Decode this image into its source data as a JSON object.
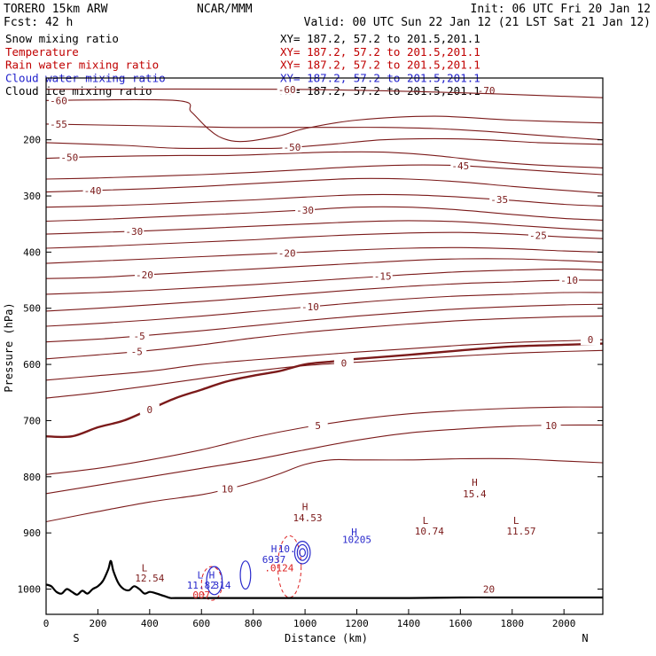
{
  "header": {
    "model": "TORERO  15km ARW",
    "org": "NCAR/MMM",
    "init": "Init: 06 UTC Fri 20 Jan 12",
    "fcst": "Fcst:   42 h",
    "valid": "Valid: 00 UTC Sun 22 Jan 12 (21 LST Sat 21 Jan 12)"
  },
  "legend": [
    {
      "name": "Snow mixing ratio",
      "xy": "XY= 187.2, 57.2 to 201.5,201.1",
      "name_color": "#000000",
      "xy_color": "#000000"
    },
    {
      "name": "Temperature",
      "xy": "XY= 187.2, 57.2 to 201.5,201.1",
      "name_color": "#c00000",
      "xy_color": "#c00000"
    },
    {
      "name": "Rain water mixing ratio",
      "xy": "XY= 187.2, 57.2 to 201.5,201.1",
      "name_color": "#c00000",
      "xy_color": "#c00000"
    },
    {
      "name": "Cloud water mixing ratio",
      "xy": "XY= 187.2, 57.2 to 201.5,201.1",
      "name_color": "#2222cc",
      "xy_color": "#2222cc"
    },
    {
      "name": "Cloud ice mixing ratio",
      "xy": "XY= 187.2, 57.2 to 201.5,201.1",
      "name_color": "#000000",
      "xy_color": "#000000"
    }
  ],
  "colors": {
    "temperature": "#7b1a1a",
    "cloud_water": "#2a2acc",
    "rain": "#dd2222",
    "terrain": "#000000",
    "frame": "#000000"
  },
  "chart_data": {
    "type": "cross-section contour",
    "xlabel": "Distance (km)",
    "ylabel": "Pressure (hPa)",
    "xlim": [
      0,
      2150
    ],
    "ylim": [
      1045,
      90
    ],
    "x_ticks": [
      0,
      200,
      400,
      600,
      800,
      1000,
      1200,
      1400,
      1600,
      1800,
      2000
    ],
    "y_ticks": [
      200,
      300,
      400,
      500,
      600,
      700,
      800,
      900,
      1000
    ],
    "x_end_labels": {
      "left": "S",
      "right": "N"
    },
    "terrain": {
      "x": [
        0,
        20,
        40,
        60,
        80,
        100,
        120,
        140,
        160,
        180,
        200,
        220,
        240,
        250,
        260,
        280,
        300,
        320,
        340,
        360,
        380,
        400,
        420,
        440,
        460,
        480,
        500,
        600,
        700,
        800,
        900,
        1000,
        1100,
        1200,
        1400,
        1600,
        1800,
        2000,
        2150
      ],
      "p": [
        992,
        995,
        1005,
        1008,
        1000,
        1005,
        1010,
        1003,
        1008,
        1000,
        995,
        985,
        965,
        950,
        968,
        990,
        1000,
        1002,
        995,
        1000,
        1008,
        1005,
        1007,
        1010,
        1013,
        1016,
        1016,
        1016,
        1016,
        1016,
        1016,
        1016,
        1016,
        1016,
        1016,
        1015,
        1015,
        1015,
        1015
      ]
    },
    "temperature_contours": [
      {
        "level": -60,
        "x": [
          0,
          900,
          1500,
          2150
        ],
        "p": [
          110,
          110,
          115,
          125
        ],
        "label_at": 930
      },
      {
        "level": -60,
        "x": [
          0,
          500,
          560,
          620,
          680,
          760,
          900,
          1000,
          1200,
          1500,
          1800,
          2150
        ],
        "p": [
          130,
          130,
          150,
          178,
          197,
          203,
          193,
          180,
          165,
          158,
          165,
          170
        ],
        "label_at": 0
      },
      {
        "level": -55,
        "x": [
          0,
          500,
          700,
          900,
          1100,
          1300,
          1500,
          1700,
          1900,
          2150
        ],
        "p": [
          172,
          176,
          178,
          178,
          178,
          178,
          180,
          185,
          192,
          200
        ],
        "label_at": 0
      },
      {
        "level": -50,
        "x": [
          0,
          300,
          500,
          700,
          900,
          1100,
          1300,
          1500,
          1700,
          1900,
          2150
        ],
        "p": [
          205,
          210,
          215,
          215,
          215,
          208,
          200,
          198,
          200,
          205,
          208
        ],
        "label_at": 950
      },
      {
        "level": -50,
        "x": [
          0,
          200,
          500,
          700,
          900,
          1100,
          1300,
          1500,
          1700,
          1900,
          2150
        ],
        "p": [
          233,
          230,
          228,
          228,
          225,
          222,
          222,
          228,
          238,
          245,
          250
        ],
        "label_at": 90
      },
      {
        "level": -45,
        "x": [
          0,
          200,
          400,
          600,
          800,
          1000,
          1200,
          1400,
          1600,
          1800,
          2000,
          2150
        ],
        "p": [
          270,
          268,
          265,
          262,
          258,
          253,
          248,
          245,
          246,
          252,
          258,
          262
        ],
        "label_at": 1600
      },
      {
        "level": -40,
        "x": [
          0,
          200,
          400,
          600,
          800,
          1000,
          1200,
          1400,
          1600,
          1800,
          2000,
          2150
        ],
        "p": [
          293,
          290,
          287,
          283,
          278,
          273,
          269,
          270,
          275,
          283,
          290,
          295
        ],
        "label_at": 180
      },
      {
        "level": -35,
        "x": [
          0,
          200,
          400,
          600,
          800,
          1000,
          1200,
          1400,
          1600,
          1800,
          2000,
          2150
        ],
        "p": [
          320,
          318,
          315,
          311,
          307,
          302,
          298,
          298,
          302,
          308,
          315,
          318
        ],
        "label_at": 1750
      },
      {
        "level": -30,
        "x": [
          0,
          200,
          400,
          600,
          800,
          1000,
          1200,
          1400,
          1600,
          1800,
          2000,
          2150
        ],
        "p": [
          345,
          342,
          338,
          334,
          330,
          325,
          320,
          320,
          325,
          333,
          340,
          343
        ],
        "label_at": 1000
      },
      {
        "level": -30,
        "x": [
          0,
          200,
          400,
          600,
          800,
          1000,
          1200,
          1400,
          1600,
          1800,
          2000,
          2150
        ],
        "p": [
          368,
          365,
          362,
          358,
          354,
          350,
          346,
          344,
          346,
          352,
          358,
          362
        ],
        "label_at": 340
      },
      {
        "level": -25,
        "x": [
          0,
          200,
          400,
          600,
          800,
          1000,
          1200,
          1400,
          1600,
          1800,
          2000,
          2150
        ],
        "p": [
          393,
          390,
          386,
          382,
          378,
          373,
          369,
          366,
          365,
          368,
          373,
          376
        ],
        "label_at": 1900
      },
      {
        "level": -20,
        "x": [
          0,
          200,
          400,
          600,
          800,
          1000,
          1200,
          1400,
          1600,
          1800,
          2000,
          2150
        ],
        "p": [
          420,
          416,
          412,
          408,
          404,
          400,
          396,
          393,
          392,
          394,
          398,
          400
        ],
        "label_at": 930
      },
      {
        "level": -20,
        "x": [
          0,
          200,
          400,
          600,
          800,
          1000,
          1200,
          1400,
          1600,
          1800,
          2000,
          2150
        ],
        "p": [
          447,
          445,
          440,
          435,
          430,
          425,
          420,
          415,
          412,
          412,
          415,
          418
        ],
        "label_at": 380
      },
      {
        "level": -15,
        "x": [
          0,
          200,
          400,
          600,
          800,
          1000,
          1200,
          1400,
          1600,
          1800,
          2000,
          2150
        ],
        "p": [
          475,
          472,
          468,
          463,
          458,
          452,
          446,
          440,
          435,
          432,
          430,
          432
        ],
        "label_at": 1300
      },
      {
        "level": -10,
        "x": [
          0,
          200,
          400,
          600,
          800,
          1000,
          1200,
          1400,
          1600,
          1800,
          2000,
          2150
        ],
        "p": [
          505,
          500,
          494,
          488,
          481,
          474,
          467,
          461,
          456,
          453,
          450,
          450
        ],
        "label_at": 2020
      },
      {
        "level": -10,
        "x": [
          0,
          200,
          400,
          600,
          800,
          1000,
          1200,
          1400,
          1600,
          1800,
          2000,
          2150
        ],
        "p": [
          532,
          527,
          521,
          514,
          506,
          498,
          490,
          483,
          478,
          475,
          472,
          472
        ],
        "label_at": 1020
      },
      {
        "level": -5,
        "x": [
          0,
          200,
          400,
          600,
          800,
          1000,
          1200,
          1400,
          1600,
          1800,
          2000,
          2150
        ],
        "p": [
          560,
          555,
          548,
          540,
          531,
          522,
          514,
          507,
          501,
          497,
          494,
          493
        ],
        "label_at": 360
      },
      {
        "level": -5,
        "x": [
          0,
          200,
          400,
          600,
          800,
          1000,
          1200,
          1400,
          1600,
          1800,
          2000,
          2150
        ],
        "p": [
          590,
          583,
          575,
          565,
          553,
          543,
          535,
          528,
          522,
          518,
          515,
          514
        ],
        "label_at": 350
      },
      {
        "level": 0,
        "x": [
          0,
          200,
          400,
          600,
          800,
          1000,
          1200,
          1400,
          1600,
          1800,
          2000,
          2150
        ],
        "p": [
          628,
          620,
          612,
          600,
          592,
          585,
          578,
          572,
          566,
          561,
          558,
          556
        ],
        "label_at": 2150
      },
      {
        "level": 0,
        "x": [
          0,
          200,
          400,
          600,
          800,
          1000,
          1200,
          1400,
          1600,
          1800,
          2000,
          2150
        ],
        "p": [
          660,
          650,
          638,
          625,
          612,
          602,
          596,
          590,
          585,
          580,
          577,
          575
        ],
        "label_at": 1150
      },
      {
        "level": 0,
        "x": [
          0,
          100,
          200,
          300,
          400,
          500,
          600,
          700,
          800,
          900,
          1000,
          1100,
          1200,
          1400,
          1600,
          1800,
          2000,
          2150
        ],
        "p": [
          728,
          728,
          712,
          700,
          680,
          660,
          645,
          630,
          620,
          612,
          600,
          595,
          590,
          583,
          575,
          568,
          565,
          563
        ],
        "label_at": 400,
        "bold": true
      },
      {
        "level": 5,
        "x": [
          0,
          200,
          400,
          600,
          800,
          1000,
          1200,
          1400,
          1600,
          1800,
          2000,
          2150
        ],
        "p": [
          796,
          785,
          770,
          752,
          730,
          712,
          698,
          688,
          682,
          678,
          676,
          676
        ],
        "label_at": 1050
      },
      {
        "level": 10,
        "x": [
          0,
          200,
          400,
          600,
          800,
          1000,
          1200,
          1400,
          1600,
          1800,
          2000,
          2150
        ],
        "p": [
          830,
          815,
          800,
          785,
          770,
          752,
          735,
          722,
          715,
          710,
          708,
          708
        ],
        "label_at": 1950
      },
      {
        "level": 10,
        "x": [
          0,
          200,
          400,
          600,
          700,
          800,
          900,
          1000,
          1100,
          1200,
          1400,
          1600,
          1800,
          2000,
          2150
        ],
        "p": [
          880,
          862,
          845,
          832,
          822,
          810,
          795,
          778,
          770,
          770,
          770,
          768,
          768,
          772,
          775
        ],
        "label_at": 700
      }
    ],
    "cloud_water_contours": [
      {
        "cx": 650,
        "cy": 985,
        "rx": 30,
        "ry": 25
      },
      {
        "cx": 770,
        "cy": 975,
        "rx": 20,
        "ry": 25
      },
      {
        "cx": 990,
        "cy": 935,
        "rx": 30,
        "ry": 20
      },
      {
        "cx": 990,
        "cy": 935,
        "rx": 20,
        "ry": 14
      },
      {
        "cx": 990,
        "cy": 935,
        "rx": 11,
        "ry": 7
      }
    ],
    "rain_contours": [
      {
        "cx": 940,
        "cy": 960,
        "rx": 45,
        "ry": 55
      },
      {
        "cx": 640,
        "cy": 990,
        "rx": 40,
        "ry": 30
      }
    ],
    "annotations": [
      {
        "text": "H",
        "x": 1000,
        "p": 853,
        "color": "#7b1a1a"
      },
      {
        "text": "14.53",
        "x": 1010,
        "p": 873,
        "color": "#7b1a1a"
      },
      {
        "text": "H",
        "x": 1655,
        "p": 810,
        "color": "#7b1a1a"
      },
      {
        "text": "15.4",
        "x": 1655,
        "p": 830,
        "color": "#7b1a1a"
      },
      {
        "text": "L",
        "x": 1465,
        "p": 878,
        "color": "#7b1a1a"
      },
      {
        "text": "10.74",
        "x": 1480,
        "p": 897,
        "color": "#7b1a1a"
      },
      {
        "text": "L",
        "x": 1815,
        "p": 878,
        "color": "#7b1a1a"
      },
      {
        "text": "11.57",
        "x": 1835,
        "p": 897,
        "color": "#7b1a1a"
      },
      {
        "text": "H",
        "x": 1190,
        "p": 898,
        "color": "#2a2acc"
      },
      {
        "text": "10205",
        "x": 1200,
        "p": 912,
        "color": "#2a2acc"
      },
      {
        "text": "H",
        "x": 880,
        "p": 928,
        "color": "#2a2acc"
      },
      {
        "text": "10.",
        "x": 930,
        "p": 928,
        "color": "#2a2acc"
      },
      {
        "text": "6937",
        "x": 880,
        "p": 947,
        "color": "#2a2acc"
      },
      {
        "text": ".0124",
        "x": 900,
        "p": 962,
        "color": "#dd2222"
      },
      {
        "text": "L",
        "x": 380,
        "p": 962,
        "color": "#7b1a1a"
      },
      {
        "text": "12.54",
        "x": 400,
        "p": 980,
        "color": "#7b1a1a"
      },
      {
        "text": "L",
        "x": 595,
        "p": 975,
        "color": "#2a2acc"
      },
      {
        "text": "H",
        "x": 640,
        "p": 975,
        "color": "#2a2acc"
      },
      {
        "text": "11.82",
        "x": 600,
        "p": 993,
        "color": "#2a2acc"
      },
      {
        "text": "314",
        "x": 680,
        "p": 993,
        "color": "#2a2acc"
      },
      {
        "text": "007",
        "x": 600,
        "p": 1010,
        "color": "#dd2222"
      },
      {
        "text": "20",
        "x": 1710,
        "p": 1000,
        "color": "#7b1a1a"
      },
      {
        "text": "-70",
        "x": 1700,
        "p": 112,
        "color": "#7b1a1a"
      }
    ]
  }
}
